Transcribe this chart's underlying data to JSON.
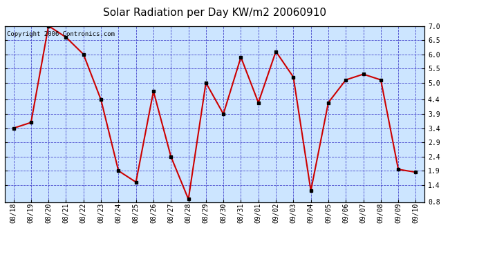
{
  "title": "Solar Radiation per Day KW/m2 20060910",
  "copyright_text": "Copyright 2006 Contronics.com",
  "x_labels": [
    "08/18",
    "08/19",
    "08/20",
    "08/21",
    "08/22",
    "08/23",
    "08/24",
    "08/25",
    "08/26",
    "08/27",
    "08/28",
    "08/29",
    "08/30",
    "08/31",
    "09/01",
    "09/02",
    "09/03",
    "09/04",
    "09/05",
    "09/06",
    "09/07",
    "09/08",
    "09/09",
    "09/10"
  ],
  "y_values": [
    3.4,
    3.6,
    7.0,
    6.6,
    6.0,
    4.4,
    1.9,
    1.5,
    4.7,
    2.4,
    0.9,
    5.0,
    3.9,
    5.9,
    4.3,
    6.1,
    5.2,
    1.2,
    4.3,
    5.1,
    5.3,
    5.1,
    1.95,
    1.85
  ],
  "line_color": "#cc0000",
  "marker_color": "#000000",
  "marker_size": 3,
  "bg_color": "#cce5ff",
  "outer_bg_color": "#ffffff",
  "grid_color": "#4444cc",
  "ylim": [
    0.8,
    7.0
  ],
  "yticks": [
    0.8,
    1.4,
    1.9,
    2.4,
    2.9,
    3.4,
    3.9,
    4.4,
    5.0,
    5.5,
    6.0,
    6.5,
    7.0
  ],
  "title_fontsize": 11,
  "tick_fontsize": 7,
  "copyright_fontsize": 6.5
}
